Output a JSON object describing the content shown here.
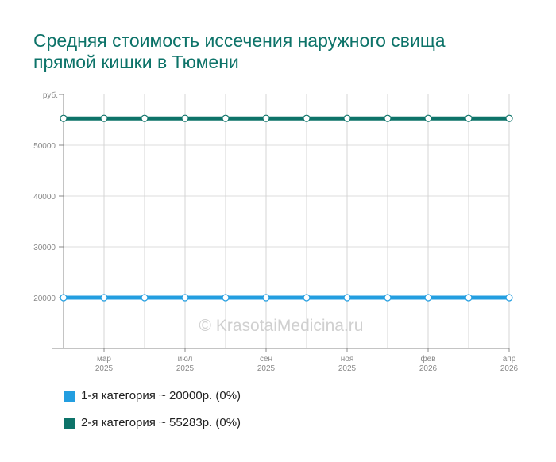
{
  "chart_data": {
    "type": "line",
    "title": "Средняя стоимость иссечения наружного свища прямой кишки в Тюмени",
    "ylabel": "руб.",
    "ylim": [
      10000,
      60000
    ],
    "yticks": [
      20000,
      30000,
      40000,
      50000
    ],
    "x_tick_labels": [
      {
        "m": "мар",
        "y": "2025",
        "i": 1
      },
      {
        "m": "июл",
        "y": "2025",
        "i": 3
      },
      {
        "m": "сен",
        "y": "2025",
        "i": 5
      },
      {
        "m": "ноя",
        "y": "2025",
        "i": 7
      },
      {
        "m": "фев",
        "y": "2026",
        "i": 9
      },
      {
        "m": "апр",
        "y": "2026",
        "i": 11
      }
    ],
    "points": 12,
    "grid": true,
    "watermark": "© KrasotaiMedicina.ru",
    "series": [
      {
        "name": "1-я категория ~ 20000р. (0%)",
        "color": "#239ee0",
        "values": [
          20000,
          20000,
          20000,
          20000,
          20000,
          20000,
          20000,
          20000,
          20000,
          20000,
          20000,
          20000
        ]
      },
      {
        "name": "2-я категория ~ 55283р. (0%)",
        "color": "#0d7369",
        "values": [
          55283,
          55283,
          55283,
          55283,
          55283,
          55283,
          55283,
          55283,
          55283,
          55283,
          55283,
          55283
        ]
      }
    ]
  }
}
